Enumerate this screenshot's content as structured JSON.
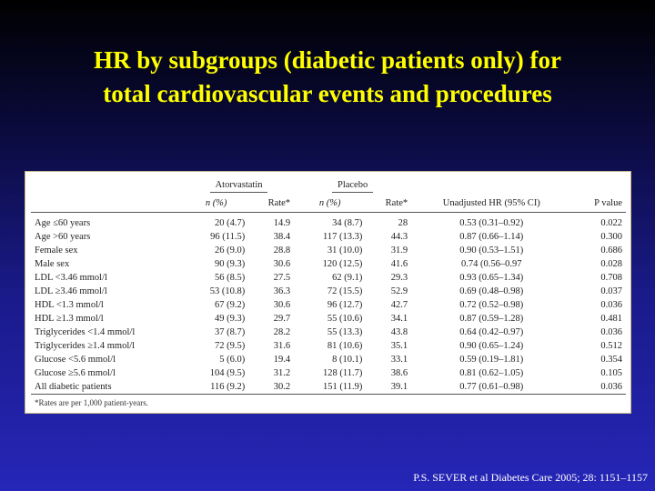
{
  "title": {
    "line1": "HR by subgroups (diabetic patients only) for",
    "line2": "total cardiovascular events and procedures"
  },
  "table": {
    "group_headers": {
      "atorvastatin": "Atorvastatin",
      "placebo": "Placebo"
    },
    "column_headers": {
      "ator_n": "n (%)",
      "ator_rate": "Rate*",
      "plac_n": "n (%)",
      "plac_rate": "Rate*",
      "hr": "Unadjusted HR (95% CI)",
      "p": "P value"
    },
    "rows": [
      {
        "label": "Age ≤60 years",
        "ator_n": "20 (4.7)",
        "ator_rate": "14.9",
        "plac_n": "34 (8.7)",
        "plac_rate": "28",
        "hr": "0.53 (0.31–0.92)",
        "p": "0.022"
      },
      {
        "label": "Age >60 years",
        "ator_n": "96 (11.5)",
        "ator_rate": "38.4",
        "plac_n": "117 (13.3)",
        "plac_rate": "44.3",
        "hr": "0.87 (0.66–1.14)",
        "p": "0.300"
      },
      {
        "label": "Female sex",
        "ator_n": "26 (9.0)",
        "ator_rate": "28.8",
        "plac_n": "31 (10.0)",
        "plac_rate": "31.9",
        "hr": "0.90 (0.53–1.51)",
        "p": "0.686"
      },
      {
        "label": "Male sex",
        "ator_n": "90 (9.3)",
        "ator_rate": "30.6",
        "plac_n": "120 (12.5)",
        "plac_rate": "41.6",
        "hr": "0.74 (0.56–0.97",
        "p": "0.028"
      },
      {
        "label": "LDL <3.46 mmol/l",
        "ator_n": "56 (8.5)",
        "ator_rate": "27.5",
        "plac_n": "62 (9.1)",
        "plac_rate": "29.3",
        "hr": "0.93 (0.65–1.34)",
        "p": "0.708"
      },
      {
        "label": "LDL ≥3.46 mmol/l",
        "ator_n": "53 (10.8)",
        "ator_rate": "36.3",
        "plac_n": "72 (15.5)",
        "plac_rate": "52.9",
        "hr": "0.69 (0.48–0.98)",
        "p": "0.037"
      },
      {
        "label": "HDL <1.3 mmol/l",
        "ator_n": "67 (9.2)",
        "ator_rate": "30.6",
        "plac_n": "96 (12.7)",
        "plac_rate": "42.7",
        "hr": "0.72 (0.52–0.98)",
        "p": "0.036"
      },
      {
        "label": "HDL ≥1.3 mmol/l",
        "ator_n": "49 (9.3)",
        "ator_rate": "29.7",
        "plac_n": "55 (10.6)",
        "plac_rate": "34.1",
        "hr": "0.87 (0.59–1.28)",
        "p": "0.481"
      },
      {
        "label": "Triglycerides <1.4 mmol/l",
        "ator_n": "37 (8.7)",
        "ator_rate": "28.2",
        "plac_n": "55 (13.3)",
        "plac_rate": "43.8",
        "hr": "0.64 (0.42–0.97)",
        "p": "0.036"
      },
      {
        "label": "Triglycerides ≥1.4 mmol/l",
        "ator_n": "72 (9.5)",
        "ator_rate": "31.6",
        "plac_n": "81 (10.6)",
        "plac_rate": "35.1",
        "hr": "0.90 (0.65–1.24)",
        "p": "0.512"
      },
      {
        "label": "Glucose <5.6 mmol/l",
        "ator_n": "5 (6.0)",
        "ator_rate": "19.4",
        "plac_n": "8 (10.1)",
        "plac_rate": "33.1",
        "hr": "0.59 (0.19–1.81)",
        "p": "0.354"
      },
      {
        "label": "Glucose ≥5.6 mmol/l",
        "ator_n": "104 (9.5)",
        "ator_rate": "31.2",
        "plac_n": "128 (11.7)",
        "plac_rate": "38.6",
        "hr": "0.81 (0.62–1.05)",
        "p": "0.105"
      },
      {
        "label": "All diabetic patients",
        "ator_n": "116 (9.2)",
        "ator_rate": "30.2",
        "plac_n": "151 (11.9)",
        "plac_rate": "39.1",
        "hr": "0.77 (0.61–0.98)",
        "p": "0.036"
      }
    ],
    "footnote": "*Rates are per 1,000 patient-years."
  },
  "citation": "P.S. SEVER et al Diabetes Care 2005; 28: 1151–1157",
  "colors": {
    "title": "#ffff00",
    "citation": "#ffffff",
    "panel_background": "#ffffff",
    "panel_border": "#c9b98a"
  }
}
